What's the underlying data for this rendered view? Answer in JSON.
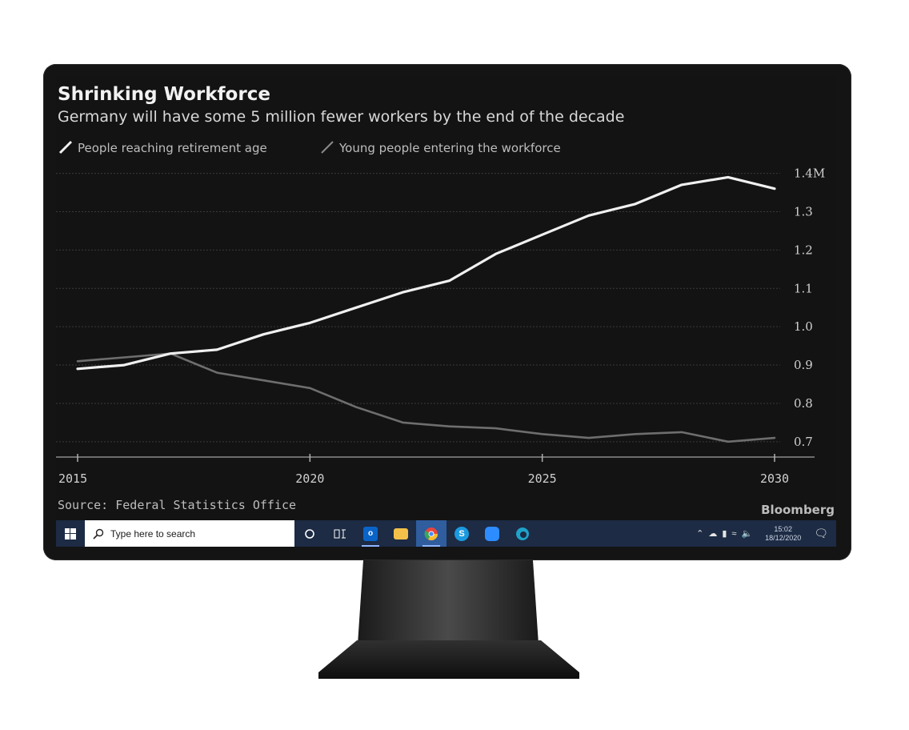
{
  "chart_data": {
    "type": "line",
    "title": "Shrinking Workforce",
    "subtitle": "Germany will have some 5 million fewer workers by the end of the decade",
    "x": [
      2015,
      2016,
      2017,
      2018,
      2019,
      2020,
      2021,
      2022,
      2023,
      2024,
      2025,
      2026,
      2027,
      2028,
      2029,
      2030
    ],
    "series": [
      {
        "name": "People reaching retirement age",
        "color": "#f0f0f0",
        "values": [
          0.89,
          0.9,
          0.93,
          0.94,
          0.98,
          1.01,
          1.05,
          1.09,
          1.12,
          1.19,
          1.24,
          1.29,
          1.32,
          1.37,
          1.39,
          1.36
        ]
      },
      {
        "name": "Young people entering the workforce",
        "color": "#6e6e6e",
        "values": [
          0.91,
          0.92,
          0.93,
          0.88,
          0.86,
          0.84,
          0.79,
          0.75,
          0.74,
          0.735,
          0.72,
          0.71,
          0.72,
          0.725,
          0.7,
          0.71
        ]
      }
    ],
    "yticks": [
      "1.4M",
      "1.3",
      "1.2",
      "1.1",
      "1.0",
      "0.9",
      "0.8",
      "0.7"
    ],
    "ytick_values": [
      1.4,
      1.3,
      1.2,
      1.1,
      1.0,
      0.9,
      0.8,
      0.7
    ],
    "xticks": [
      "2015",
      "2020",
      "2025",
      "2030"
    ],
    "xtick_values": [
      2015,
      2020,
      2025,
      2030
    ],
    "ylim": [
      0.66,
      1.42
    ],
    "xlim": [
      2015,
      2030
    ],
    "y_axis_side": "right",
    "grid": true,
    "legend_position": "top-left",
    "source": "Source: Federal Statistics Office",
    "brand": "Bloomberg"
  },
  "taskbar": {
    "search_placeholder": "Type here to search",
    "apps": [
      {
        "name": "cortana-icon",
        "active": false
      },
      {
        "name": "task-view-icon",
        "active": false
      },
      {
        "name": "outlook-icon",
        "active": true,
        "color": "#0a64c8"
      },
      {
        "name": "file-explorer-icon",
        "active": false,
        "color": "#f3c04a"
      },
      {
        "name": "chrome-icon",
        "active": true,
        "color": "#e8453c"
      },
      {
        "name": "skype-icon",
        "active": false,
        "color": "#1b9ae0"
      },
      {
        "name": "zoom-icon",
        "active": false,
        "color": "#2d8cff"
      },
      {
        "name": "edge-icon",
        "active": false,
        "color": "#1fa2c9"
      }
    ],
    "time": "15:02",
    "date": "18/12/2020"
  },
  "colors": {
    "screen_bg": "#131313",
    "taskbar_bg": "#1d2b44",
    "bezel": "#141414"
  }
}
